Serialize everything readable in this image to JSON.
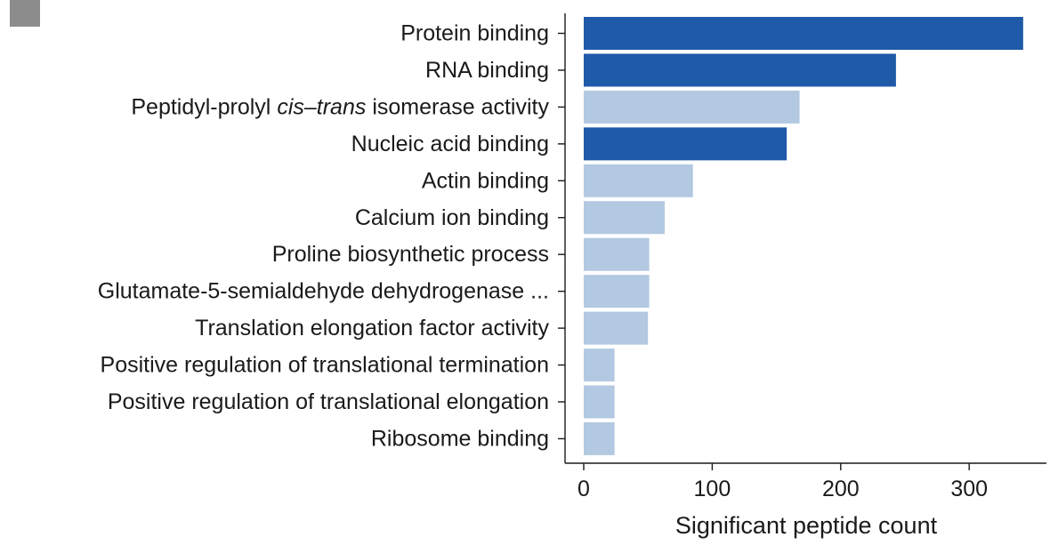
{
  "chart_data": {
    "type": "bar",
    "orientation": "horizontal",
    "xlabel": "Significant peptide count",
    "xlim": [
      0,
      360
    ],
    "xticks": [
      0,
      100,
      200,
      300
    ],
    "grid": false,
    "categories": [
      {
        "parts": [
          {
            "text": "Protein binding",
            "italic": false
          }
        ],
        "value": 342,
        "highlight": true
      },
      {
        "parts": [
          {
            "text": "RNA binding",
            "italic": false
          }
        ],
        "value": 243,
        "highlight": true
      },
      {
        "parts": [
          {
            "text": "Peptidyl-prolyl ",
            "italic": false
          },
          {
            "text": "cis",
            "italic": true
          },
          {
            "text": "–",
            "italic": false
          },
          {
            "text": "trans",
            "italic": true
          },
          {
            "text": " isomerase activity",
            "italic": false
          }
        ],
        "value": 168,
        "highlight": false
      },
      {
        "parts": [
          {
            "text": "Nucleic acid binding",
            "italic": false
          }
        ],
        "value": 158,
        "highlight": true
      },
      {
        "parts": [
          {
            "text": "Actin binding",
            "italic": false
          }
        ],
        "value": 85,
        "highlight": false
      },
      {
        "parts": [
          {
            "text": "Calcium ion binding",
            "italic": false
          }
        ],
        "value": 63,
        "highlight": false
      },
      {
        "parts": [
          {
            "text": "Proline biosynthetic process",
            "italic": false
          }
        ],
        "value": 51,
        "highlight": false
      },
      {
        "parts": [
          {
            "text": "Glutamate-5-semialdehyde dehydrogenase ...",
            "italic": false
          }
        ],
        "value": 51,
        "highlight": false
      },
      {
        "parts": [
          {
            "text": "Translation elongation factor activity",
            "italic": false
          }
        ],
        "value": 50,
        "highlight": false
      },
      {
        "parts": [
          {
            "text": "Positive regulation of translational termination",
            "italic": false
          }
        ],
        "value": 24,
        "highlight": false
      },
      {
        "parts": [
          {
            "text": "Positive regulation of translational elongation",
            "italic": false
          }
        ],
        "value": 24,
        "highlight": false
      },
      {
        "parts": [
          {
            "text": "Ribosome binding",
            "italic": false
          }
        ],
        "value": 24,
        "highlight": false
      }
    ],
    "colors": {
      "highlight_bar": "#1f5aa8",
      "normal_bar": "#b3c9e1",
      "highlight_label": "#a33a3a",
      "normal_label": "#1a1a1a",
      "axis": "#1a1a1a"
    }
  }
}
